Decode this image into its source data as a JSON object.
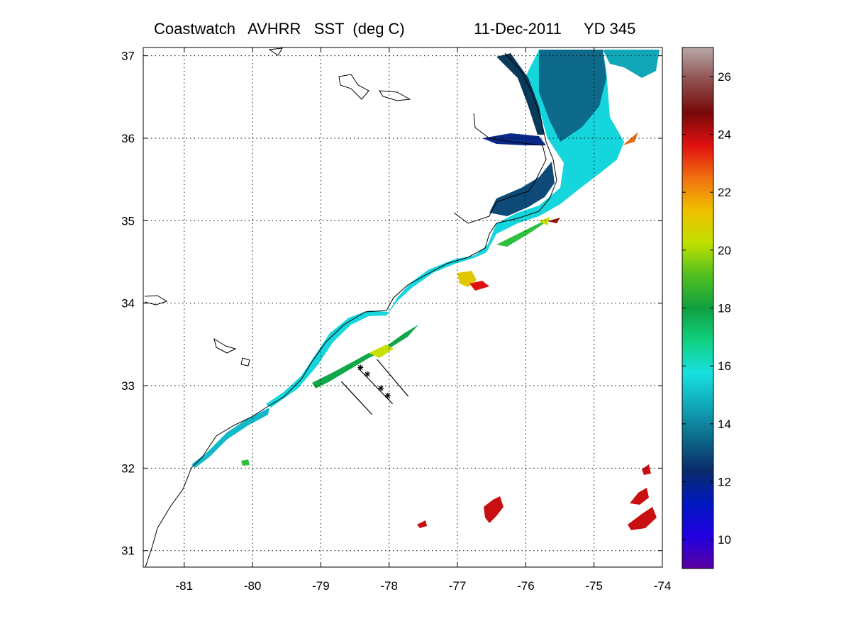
{
  "title": {
    "product": "Coastwatch   AVHRR   SST  (deg C)",
    "date": "11-Dec-2011",
    "yearday": "YD 345"
  },
  "map": {
    "lon_range": [
      -81.6,
      -74
    ],
    "lat_range": [
      30.8,
      37.1
    ],
    "lon_ticks": [
      "-81",
      "-80",
      "-79",
      "-78",
      "-77",
      "-76",
      "-75",
      "-74"
    ],
    "lon_tick_values": [
      -81,
      -80,
      -79,
      -78,
      -77,
      -76,
      -75,
      -74
    ],
    "lat_ticks": [
      "31",
      "32",
      "33",
      "34",
      "35",
      "36",
      "37"
    ],
    "lat_tick_values": [
      31,
      32,
      33,
      34,
      35,
      36,
      37
    ],
    "grid": "dotted"
  },
  "colorbar": {
    "range": [
      9,
      27
    ],
    "ticks": [
      "10",
      "12",
      "14",
      "16",
      "18",
      "20",
      "22",
      "24",
      "26"
    ],
    "tick_values": [
      10,
      12,
      14,
      16,
      18,
      20,
      22,
      24,
      26
    ],
    "colors": [
      "#5a00a0",
      "#2000e0",
      "#0018c0",
      "#0a2a6a",
      "#0d6a8a",
      "#10a8b8",
      "#18e0e0",
      "#10d080",
      "#10a040",
      "#50c020",
      "#c0e000",
      "#f0c000",
      "#f07010",
      "#e01010",
      "#780808",
      "#905050",
      "#b8a8a8"
    ]
  },
  "stations": [
    {
      "lon": -78.42,
      "lat": 33.22
    },
    {
      "lon": -78.32,
      "lat": 33.14
    },
    {
      "lon": -78.12,
      "lat": 32.97
    },
    {
      "lon": -78.02,
      "lat": 32.88
    }
  ],
  "transects": [
    {
      "from": [
        -78.18,
        33.32
      ],
      "to": [
        -77.72,
        32.87
      ]
    },
    {
      "from": [
        -78.45,
        33.21
      ],
      "to": [
        -77.95,
        32.78
      ]
    },
    {
      "from": [
        -78.7,
        33.05
      ],
      "to": [
        -78.25,
        32.65
      ]
    }
  ]
}
